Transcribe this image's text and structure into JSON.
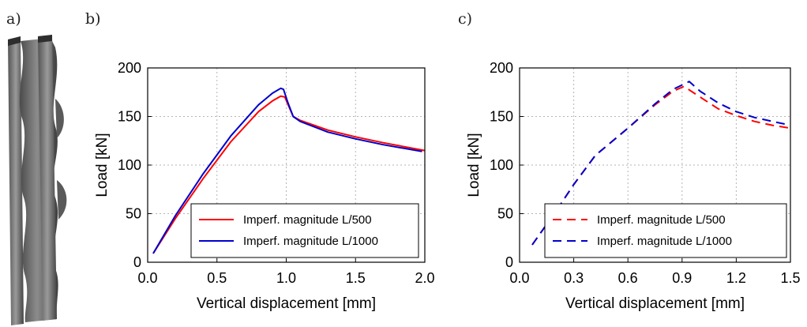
{
  "panels": {
    "a": {
      "letter": "a)"
    },
    "b": {
      "letter": "b)"
    },
    "c": {
      "letter": "c)"
    }
  },
  "colors": {
    "red": "#ff0000",
    "blue": "#0000cc",
    "column_dark": "#3a3a3a",
    "column_light": "#8a8a8a"
  },
  "chart_data": [
    {
      "panel": "b",
      "type": "line",
      "title": "",
      "xlabel": "Vertical displacement [mm]",
      "ylabel": "Load [kN]",
      "xlim": [
        0.0,
        2.0
      ],
      "ylim": [
        0,
        200
      ],
      "xticks": [
        0.0,
        0.5,
        1.0,
        1.5,
        2.0
      ],
      "xtick_labels": [
        "0.0",
        "0.5",
        "1.0",
        "1.5",
        "2.0"
      ],
      "yticks": [
        0,
        50,
        100,
        150,
        200
      ],
      "ytick_labels": [
        "0",
        "50",
        "100",
        "150",
        "200"
      ],
      "grid": true,
      "legend_position": "bottom-right",
      "series": [
        {
          "name": "Imperf. magnitude L/500",
          "color": "#ff0000",
          "dash": "solid",
          "x": [
            0.04,
            0.2,
            0.4,
            0.6,
            0.8,
            0.9,
            0.96,
            0.99,
            1.02,
            1.05,
            1.1,
            1.3,
            1.5,
            1.7,
            2.0
          ],
          "y": [
            9,
            45,
            86,
            124,
            155,
            166,
            171,
            170,
            160,
            150,
            146,
            136,
            129,
            123,
            115
          ]
        },
        {
          "name": "Imperf. magnitude L/1000",
          "color": "#0000cc",
          "dash": "solid",
          "x": [
            0.04,
            0.2,
            0.4,
            0.6,
            0.8,
            0.9,
            0.96,
            0.98,
            1.01,
            1.05,
            1.1,
            1.3,
            1.5,
            1.7,
            1.98
          ],
          "y": [
            9,
            48,
            91,
            130,
            162,
            174,
            179,
            178,
            165,
            150,
            145,
            134,
            127,
            121,
            114
          ]
        }
      ]
    },
    {
      "panel": "c",
      "type": "line",
      "title": "",
      "xlabel": "Vertical displacement [mm]",
      "ylabel": "Load [kN]",
      "xlim": [
        0.0,
        1.5
      ],
      "ylim": [
        0,
        200
      ],
      "xticks": [
        0.0,
        0.3,
        0.6,
        0.9,
        1.2,
        1.5
      ],
      "xtick_labels": [
        "0.0",
        "0.3",
        "0.6",
        "0.9",
        "1.2",
        "1.5"
      ],
      "yticks": [
        0,
        50,
        100,
        150,
        200
      ],
      "ytick_labels": [
        "0",
        "50",
        "100",
        "150",
        "200"
      ],
      "grid": true,
      "legend_position": "bottom-right",
      "series": [
        {
          "name": "Imperf. magnitude L/500",
          "color": "#ff0000",
          "dash": "dashed",
          "x": [
            0.07,
            0.2,
            0.3,
            0.42,
            0.6,
            0.75,
            0.85,
            0.91,
            1.0,
            1.1,
            1.2,
            1.3,
            1.4,
            1.5
          ],
          "y": [
            18,
            52,
            80,
            110,
            138,
            162,
            176,
            181,
            170,
            158,
            151,
            145,
            141,
            138
          ]
        },
        {
          "name": "Imperf. magnitude L/1000",
          "color": "#0000cc",
          "dash": "dashed",
          "x": [
            0.07,
            0.2,
            0.3,
            0.42,
            0.6,
            0.75,
            0.85,
            0.94,
            1.0,
            1.1,
            1.2,
            1.3,
            1.4,
            1.5
          ],
          "y": [
            18,
            52,
            80,
            110,
            138,
            163,
            178,
            186,
            176,
            164,
            155,
            149,
            145,
            141
          ]
        }
      ]
    }
  ]
}
